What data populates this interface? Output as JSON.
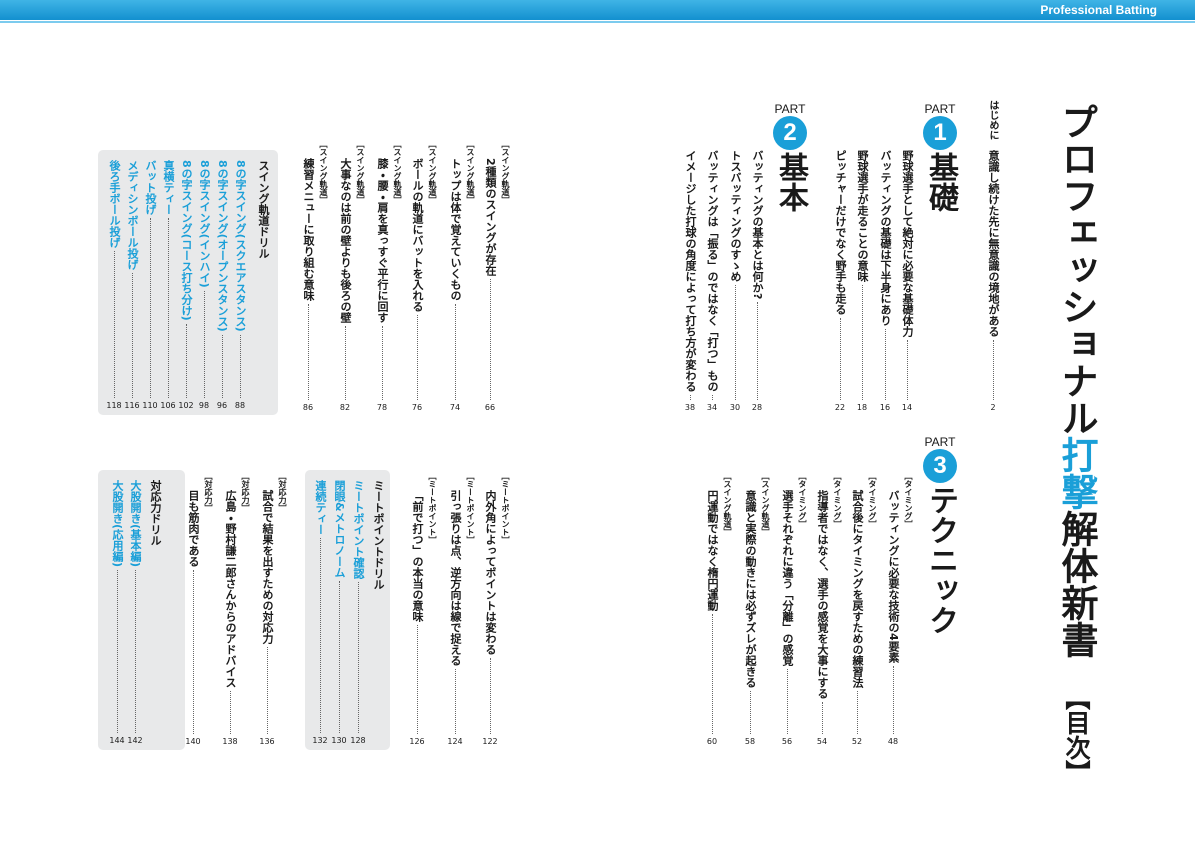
{
  "header": {
    "running_title": "Professional Batting"
  },
  "title": {
    "lead": "プロフェッショナル",
    "highlight": "打撃",
    "tail": "解体新書",
    "label": "【目次】"
  },
  "intro": {
    "label": "はじめに",
    "entries": [
      {
        "title": "意識し続けた先に無意識の境地がある",
        "page": 2
      }
    ]
  },
  "parts": [
    {
      "label": "PART",
      "number": 1,
      "name": "基礎",
      "items": [
        {
          "title": "野球選手として絶対に必要な基礎体力",
          "page": 14
        },
        {
          "title": "バッティングの基礎は下半身にあり",
          "page": 16
        },
        {
          "title": "野球選手が走ることの意味",
          "page": 18
        },
        {
          "title": "ピッチャーだけでなく野手も走る",
          "page": 22
        }
      ]
    },
    {
      "label": "PART",
      "number": 2,
      "name": "基本",
      "items": [
        {
          "title": "バッティングの基本とは何か?",
          "page": 28
        },
        {
          "title": "トスバッティングのすゝめ",
          "page": 30
        },
        {
          "title": "バッティングは「振る」のではなく「打つ」もの",
          "page": 34
        },
        {
          "title": "イメージした打球の角度によって打ち方が変わる",
          "page": 38
        },
        {
          "tag": "［スイング軌道］",
          "title": "2種類のスイングが存在",
          "page": 66
        },
        {
          "tag": "［スイング軌道］",
          "title": "トップは体で覚えていくもの",
          "page": 74
        },
        {
          "tag": "［スイング軌道］",
          "title": "ボールの軌道にバットを入れる",
          "page": 76
        },
        {
          "tag": "［スイング軌道］",
          "title": "膝・腰・肩を真っすぐ平行に回す",
          "page": 78
        },
        {
          "tag": "［スイング軌道］",
          "title": "大事なのは前の壁よりも後ろの壁",
          "page": 82
        },
        {
          "tag": "［スイング軌道］",
          "title": "練習メニューに取り組む意味",
          "page": 86
        },
        {
          "drill": "スイング軌道ドリル",
          "entries": [
            {
              "title": "8の字スイング(スクエアスタンス)",
              "page": 88
            },
            {
              "title": "8の字スイング(オープンスタンス)",
              "page": 96
            },
            {
              "title": "8の字スイング(インハイ)",
              "page": 98
            },
            {
              "title": "8の字スイング(コース打ち分け)",
              "page": 102
            },
            {
              "title": "真横ティー",
              "page": 106
            },
            {
              "title": "バット投げ",
              "page": 110
            },
            {
              "title": "メディシンボール投げ",
              "page": 116
            },
            {
              "title": "後ろ手ボール投げ",
              "page": 118
            }
          ]
        }
      ]
    },
    {
      "label": "PART",
      "number": 3,
      "name": "テクニック",
      "items": [
        {
          "tag": "［タイミング］",
          "title": "バッティングに必要な技術の4要素",
          "page": 48
        },
        {
          "tag": "［タイミング］",
          "title": "試合後にタイミングを戻すための練習法",
          "page": 52
        },
        {
          "tag": "［タイミング］",
          "title": "指導者ではなく、選手の感覚を大事にする",
          "page": 54
        },
        {
          "tag": "［タイミング］",
          "title": "選手それぞれに違う「分離」の感覚",
          "page": 56
        },
        {
          "tag": "［スイング軌道］",
          "title": "意識と実際の動きには必ずズレが起きる",
          "page": 58
        },
        {
          "tag": "［スイング軌道］",
          "title": "円運動ではなく楕円運動",
          "page": 60
        },
        {
          "tag": "［ミートポイント］",
          "title": "内外角によってポイントは変わる",
          "page": 122
        },
        {
          "tag": "［ミートポイント］",
          "title": "引っ張りは点、逆方向は線で捉える",
          "page": 124
        },
        {
          "tag": "［ミートポイント］",
          "title": "「前で打つ」の本当の意味",
          "page": 126
        },
        {
          "drill": "ミートポイントドリル",
          "entries": [
            {
              "title": "ミートポイント確認",
              "page": 128
            },
            {
              "title": "閉眼&メトロノーム",
              "page": 130
            },
            {
              "title": "連続ティー",
              "page": 132
            }
          ]
        },
        {
          "tag": "［対応力］",
          "title": "試合で結果を出すための対応力",
          "page": 136
        },
        {
          "tag": "［対応力］",
          "title": "広島・野村謙二郎さんからのアドバイス",
          "page": 138
        },
        {
          "tag": "［対応力］",
          "title": "目も筋肉である",
          "page": 140
        },
        {
          "drill": "対応力ドリル",
          "entries": [
            {
              "title": "大股開き(基本編)",
              "page": 142
            },
            {
              "title": "大股開き(応用編)",
              "page": 144
            }
          ]
        }
      ]
    }
  ]
}
